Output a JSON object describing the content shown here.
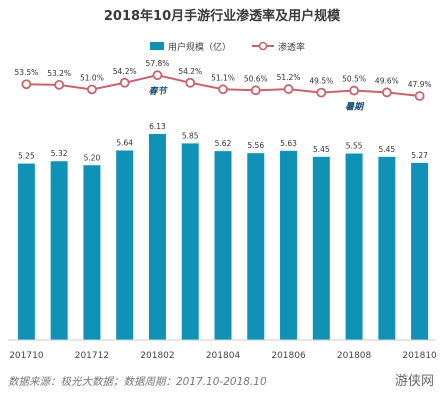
{
  "chart_data": {
    "type": "bar+line",
    "title": "2018年10月手游行业渗透率及用户规模",
    "categories": [
      "201710",
      "201711",
      "201712",
      "201801",
      "201802",
      "201803",
      "201804",
      "201805",
      "201806",
      "201807",
      "201808",
      "201809",
      "201810"
    ],
    "x_tick_labels": [
      "201710",
      "201712",
      "201802",
      "201804",
      "201806",
      "201808",
      "201810"
    ],
    "series": [
      {
        "name": "用户规模（亿）",
        "kind": "bar",
        "axis": "left",
        "values": [
          5.25,
          5.32,
          5.2,
          5.64,
          6.13,
          5.85,
          5.62,
          5.56,
          5.63,
          5.45,
          5.55,
          5.45,
          5.27
        ]
      },
      {
        "name": "渗透率",
        "kind": "line",
        "axis": "right",
        "unit": "%",
        "values": [
          53.5,
          53.2,
          51.0,
          54.2,
          57.8,
          54.2,
          51.1,
          50.6,
          51.2,
          49.5,
          50.5,
          49.6,
          47.9
        ]
      }
    ],
    "annotations": [
      {
        "text": "春节",
        "category": "201802"
      },
      {
        "text": "暑期",
        "category": "201808"
      }
    ],
    "colors": {
      "bar": "#0f92b5",
      "line": "#c8646e",
      "marker_fill": "#ffffff"
    },
    "legend_position": "top"
  },
  "footer": {
    "source": "数据来源：极光大数据；数据周期：2017.10-2018.10",
    "watermark": "游侠网"
  }
}
